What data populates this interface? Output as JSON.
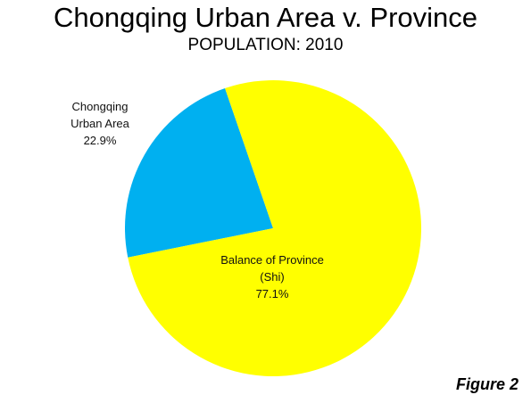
{
  "chart_data": {
    "type": "pie",
    "title": "Chongqing Urban Area v. Province",
    "subtitle": "POPULATION: 2010",
    "categories": [
      "Chongqing Urban Area",
      "Balance of Province (Shi)"
    ],
    "values": [
      22.9,
      77.1
    ],
    "value_labels": [
      "22.9%",
      "77.1%"
    ],
    "colors": [
      "#00b0f0",
      "#ffff00"
    ],
    "annotation": "Figure 2"
  }
}
